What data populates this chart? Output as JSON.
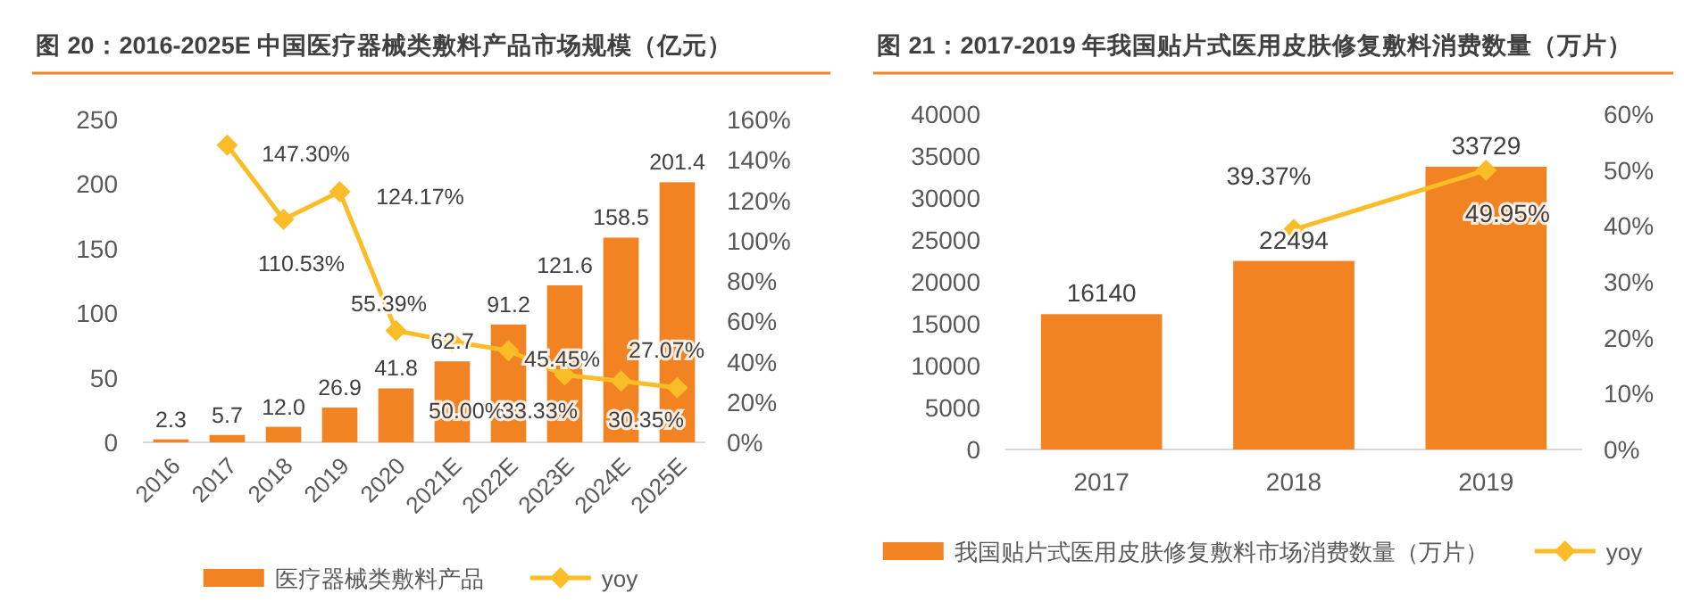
{
  "chart_data": [
    {
      "type": "bar",
      "title": "图 20：2016-2025E 中国医疗器械类敷料产品市场规模（亿元）",
      "categories": [
        "2016",
        "2017",
        "2018",
        "2019",
        "2020",
        "2021E",
        "2022E",
        "2023E",
        "2024E",
        "2025E"
      ],
      "series": [
        {
          "name": "医疗器械类敷料产品",
          "color": "#f28322",
          "values": [
            2.3,
            5.7,
            12.0,
            26.9,
            41.8,
            62.7,
            91.2,
            121.6,
            158.5,
            201.4
          ],
          "value_labels": [
            "2.3",
            "5.7",
            "12.0",
            "26.9",
            "41.8",
            "62.7",
            "91.2",
            "121.6",
            "158.5",
            "201.4"
          ]
        },
        {
          "name": "yoy",
          "type": "line",
          "axis": "y2",
          "color": "#fbbd27",
          "values": [
            null,
            147.3,
            110.53,
            124.17,
            55.39,
            50.0,
            45.45,
            33.33,
            30.35,
            27.07
          ],
          "value_labels": [
            null,
            "147.30%",
            "110.53%",
            "124.17%",
            "55.39%",
            "50.00%",
            "45.45%",
            "33.33%",
            "30.35%",
            "27.07%"
          ]
        }
      ],
      "ylim": [
        0,
        250
      ],
      "yticks": [
        0,
        50,
        100,
        150,
        200,
        250
      ],
      "y2lim": [
        0,
        160
      ],
      "y2ticks": [
        {
          "value": 0,
          "label": "0%"
        },
        {
          "value": 20,
          "label": "20%"
        },
        {
          "value": 40,
          "label": "40%"
        },
        {
          "value": 60,
          "label": "60%"
        },
        {
          "value": 80,
          "label": "80%"
        },
        {
          "value": 100,
          "label": "100%"
        },
        {
          "value": 120,
          "label": "120%"
        },
        {
          "value": 140,
          "label": "140%"
        },
        {
          "value": 160,
          "label": "160%"
        }
      ],
      "legend": "bottom",
      "marker": "diamond"
    },
    {
      "type": "bar",
      "title": "图 21：2017-2019 年我国贴片式医用皮肤修复敷料消费数量（万片）",
      "categories": [
        "2017",
        "2018",
        "2019"
      ],
      "series": [
        {
          "name": "我国贴片式医用皮肤修复敷料市场消费数量（万片）",
          "color": "#f28322",
          "values": [
            16140,
            22494,
            33729
          ],
          "value_labels": [
            "16140",
            "22494",
            "33729"
          ]
        },
        {
          "name": "yoy",
          "type": "line",
          "axis": "y2",
          "color": "#fbbd27",
          "values": [
            null,
            39.37,
            49.95
          ],
          "value_labels": [
            null,
            "39.37%",
            "49.95%"
          ]
        }
      ],
      "ylim": [
        0,
        40000
      ],
      "yticks": [
        0,
        5000,
        10000,
        15000,
        20000,
        25000,
        30000,
        35000,
        40000
      ],
      "y2lim": [
        0,
        60
      ],
      "y2ticks": [
        {
          "value": 0,
          "label": "0%"
        },
        {
          "value": 10,
          "label": "10%"
        },
        {
          "value": 20,
          "label": "20%"
        },
        {
          "value": 30,
          "label": "30%"
        },
        {
          "value": 40,
          "label": "40%"
        },
        {
          "value": 50,
          "label": "50%"
        },
        {
          "value": 60,
          "label": "60%"
        }
      ],
      "legend": "bottom",
      "marker": "diamond"
    }
  ]
}
